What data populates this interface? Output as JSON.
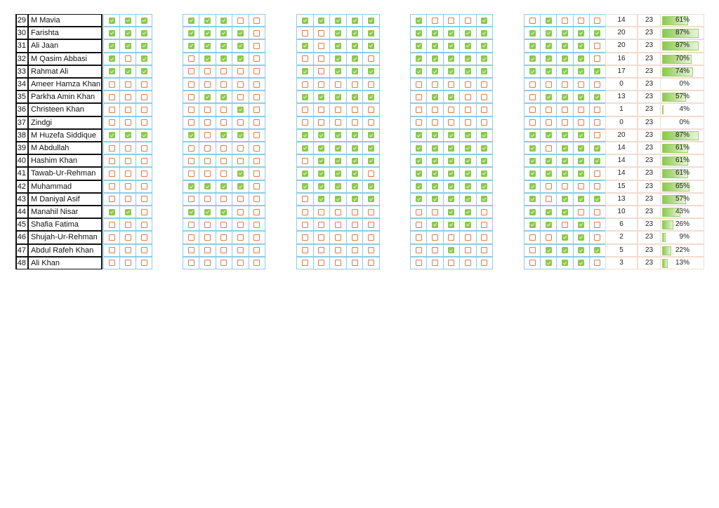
{
  "colors": {
    "checked": "#8cc84b",
    "unchecked": "#e07a45",
    "grid": "#8ecbe6"
  },
  "students": [
    {
      "no": "29",
      "name": "M Mavia",
      "g": [
        [
          1,
          1,
          1
        ],
        [
          1,
          1,
          1,
          0,
          0
        ],
        [
          1,
          1,
          1,
          1,
          1
        ],
        [
          1,
          0,
          0,
          0,
          1
        ],
        [
          0,
          1,
          0,
          0,
          0
        ]
      ],
      "present": "14",
      "total": "23",
      "pct": 61,
      "pct_label": "61%"
    },
    {
      "no": "30",
      "name": "Farishta",
      "g": [
        [
          1,
          1,
          1
        ],
        [
          1,
          1,
          1,
          1,
          0
        ],
        [
          0,
          0,
          1,
          1,
          1
        ],
        [
          1,
          1,
          1,
          1,
          1
        ],
        [
          1,
          1,
          1,
          1,
          1
        ]
      ],
      "present": "20",
      "total": "23",
      "pct": 87,
      "pct_label": "87%"
    },
    {
      "no": "31",
      "name": "Ali Jaan",
      "g": [
        [
          1,
          1,
          1
        ],
        [
          1,
          1,
          1,
          1,
          0
        ],
        [
          1,
          0,
          1,
          1,
          1
        ],
        [
          1,
          1,
          1,
          1,
          1
        ],
        [
          1,
          1,
          1,
          1,
          0
        ]
      ],
      "present": "20",
      "total": "23",
      "pct": 87,
      "pct_label": "87%"
    },
    {
      "no": "32",
      "name": "M Qasim Abbasi",
      "g": [
        [
          1,
          0,
          1
        ],
        [
          0,
          1,
          1,
          1,
          0
        ],
        [
          0,
          0,
          1,
          1,
          0
        ],
        [
          1,
          1,
          1,
          1,
          1
        ],
        [
          1,
          1,
          1,
          1,
          0
        ]
      ],
      "present": "16",
      "total": "23",
      "pct": 70,
      "pct_label": "70%"
    },
    {
      "no": "33",
      "name": "Rahmat Ali",
      "g": [
        [
          1,
          1,
          1
        ],
        [
          0,
          0,
          0,
          0,
          0
        ],
        [
          1,
          0,
          1,
          1,
          1
        ],
        [
          1,
          1,
          1,
          1,
          1
        ],
        [
          1,
          1,
          1,
          1,
          1
        ]
      ],
      "present": "17",
      "total": "23",
      "pct": 74,
      "pct_label": "74%"
    },
    {
      "no": "34",
      "name": "Ameer Hamza Khan",
      "g": [
        [
          0,
          0,
          0
        ],
        [
          0,
          0,
          0,
          0,
          0
        ],
        [
          0,
          0,
          0,
          0,
          0
        ],
        [
          0,
          0,
          0,
          0,
          0
        ],
        [
          0,
          0,
          0,
          0,
          0
        ]
      ],
      "present": "0",
      "total": "23",
      "pct": 0,
      "pct_label": "0%"
    },
    {
      "no": "35",
      "name": "Parkha Amin Khan",
      "g": [
        [
          0,
          0,
          0
        ],
        [
          0,
          1,
          1,
          0,
          0
        ],
        [
          1,
          1,
          1,
          1,
          1
        ],
        [
          0,
          1,
          1,
          0,
          0
        ],
        [
          0,
          1,
          1,
          1,
          1
        ]
      ],
      "present": "13",
      "total": "23",
      "pct": 57,
      "pct_label": "57%"
    },
    {
      "no": "36",
      "name": "Christeen Khan",
      "g": [
        [
          0,
          0,
          0
        ],
        [
          0,
          0,
          0,
          1,
          0
        ],
        [
          0,
          0,
          0,
          0,
          0
        ],
        [
          0,
          0,
          0,
          0,
          0
        ],
        [
          0,
          0,
          0,
          0,
          0
        ]
      ],
      "present": "1",
      "total": "23",
      "pct": 4,
      "pct_label": "4%"
    },
    {
      "no": "37",
      "name": "Zindgi",
      "g": [
        [
          0,
          0,
          0
        ],
        [
          0,
          0,
          0,
          0,
          0
        ],
        [
          0,
          0,
          0,
          0,
          0
        ],
        [
          0,
          0,
          0,
          0,
          0
        ],
        [
          0,
          0,
          0,
          0,
          0
        ]
      ],
      "present": "0",
      "total": "23",
      "pct": 0,
      "pct_label": "0%"
    },
    {
      "no": "38",
      "name": "M Huzefa Siddique",
      "g": [
        [
          1,
          1,
          1
        ],
        [
          1,
          0,
          1,
          1,
          0
        ],
        [
          1,
          1,
          1,
          1,
          1
        ],
        [
          1,
          1,
          1,
          1,
          1
        ],
        [
          1,
          1,
          1,
          1,
          0
        ]
      ],
      "present": "20",
      "total": "23",
      "pct": 87,
      "pct_label": "87%"
    },
    {
      "no": "39",
      "name": "M Abdullah",
      "g": [
        [
          0,
          0,
          0
        ],
        [
          0,
          0,
          0,
          0,
          0
        ],
        [
          1,
          1,
          1,
          1,
          1
        ],
        [
          1,
          1,
          1,
          1,
          1
        ],
        [
          1,
          0,
          1,
          1,
          1
        ]
      ],
      "present": "14",
      "total": "23",
      "pct": 61,
      "pct_label": "61%"
    },
    {
      "no": "40",
      "name": "Hashim Khan",
      "g": [
        [
          0,
          0,
          0
        ],
        [
          0,
          0,
          0,
          0,
          0
        ],
        [
          0,
          1,
          1,
          1,
          1
        ],
        [
          1,
          1,
          1,
          1,
          1
        ],
        [
          1,
          1,
          1,
          1,
          1
        ]
      ],
      "present": "14",
      "total": "23",
      "pct": 61,
      "pct_label": "61%"
    },
    {
      "no": "41",
      "name": "Tawab-Ur-Rehman",
      "g": [
        [
          0,
          0,
          0
        ],
        [
          0,
          0,
          0,
          1,
          0
        ],
        [
          1,
          1,
          1,
          1,
          0
        ],
        [
          1,
          1,
          1,
          1,
          1
        ],
        [
          1,
          1,
          1,
          1,
          0
        ]
      ],
      "present": "14",
      "total": "23",
      "pct": 61,
      "pct_label": "61%"
    },
    {
      "no": "42",
      "name": "Muhammad",
      "g": [
        [
          0,
          0,
          0
        ],
        [
          1,
          1,
          1,
          1,
          0
        ],
        [
          1,
          1,
          1,
          1,
          1
        ],
        [
          1,
          1,
          1,
          1,
          1
        ],
        [
          1,
          0,
          0,
          0,
          0
        ]
      ],
      "present": "15",
      "total": "23",
      "pct": 65,
      "pct_label": "65%"
    },
    {
      "no": "43",
      "name": "M Daniyal Asif",
      "g": [
        [
          0,
          0,
          0
        ],
        [
          0,
          0,
          0,
          0,
          0
        ],
        [
          0,
          1,
          1,
          1,
          1
        ],
        [
          1,
          1,
          1,
          1,
          1
        ],
        [
          1,
          0,
          1,
          1,
          1
        ]
      ],
      "present": "13",
      "total": "23",
      "pct": 57,
      "pct_label": "57%"
    },
    {
      "no": "44",
      "name": "Manahil Nisar",
      "g": [
        [
          1,
          1,
          0
        ],
        [
          1,
          1,
          1,
          0,
          0
        ],
        [
          0,
          0,
          0,
          0,
          0
        ],
        [
          0,
          0,
          1,
          1,
          0
        ],
        [
          1,
          1,
          1,
          0,
          0
        ]
      ],
      "present": "10",
      "total": "23",
      "pct": 43,
      "pct_label": "43%"
    },
    {
      "no": "45",
      "name": "Shafia Fatima",
      "g": [
        [
          0,
          0,
          0
        ],
        [
          0,
          0,
          0,
          0,
          0
        ],
        [
          0,
          0,
          0,
          0,
          0
        ],
        [
          0,
          1,
          1,
          1,
          0
        ],
        [
          1,
          1,
          0,
          1,
          0
        ]
      ],
      "present": "6",
      "total": "23",
      "pct": 26,
      "pct_label": "26%"
    },
    {
      "no": "46",
      "name": "Shujah-Ur-Rehman",
      "g": [
        [
          0,
          0,
          0
        ],
        [
          0,
          0,
          0,
          0,
          0
        ],
        [
          0,
          0,
          0,
          0,
          0
        ],
        [
          0,
          0,
          0,
          0,
          0
        ],
        [
          0,
          0,
          1,
          1,
          0
        ]
      ],
      "present": "2",
      "total": "23",
      "pct": 9,
      "pct_label": "9%"
    },
    {
      "no": "47",
      "name": "Abdul Rafeh Khan",
      "g": [
        [
          0,
          0,
          0
        ],
        [
          0,
          0,
          0,
          0,
          0
        ],
        [
          0,
          0,
          0,
          0,
          0
        ],
        [
          0,
          0,
          1,
          0,
          0
        ],
        [
          0,
          1,
          1,
          1,
          1
        ]
      ],
      "present": "5",
      "total": "23",
      "pct": 22,
      "pct_label": "22%"
    },
    {
      "no": "48",
      "name": "Ali Khan",
      "g": [
        [
          0,
          0,
          0
        ],
        [
          0,
          0,
          0,
          0,
          0
        ],
        [
          0,
          0,
          0,
          0,
          0
        ],
        [
          0,
          0,
          0,
          0,
          0
        ],
        [
          0,
          1,
          1,
          1,
          0
        ]
      ],
      "present": "3",
      "total": "23",
      "pct": 13,
      "pct_label": "13%"
    }
  ]
}
